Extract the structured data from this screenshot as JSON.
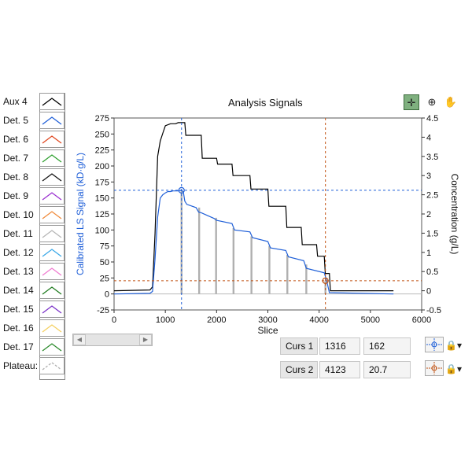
{
  "window": {
    "title": "Analysis Signals"
  },
  "toolbar": {
    "crosshair_icon": "crosshair-icon",
    "zoom_icon": "zoom-icon",
    "pan_icon": "hand-pan-icon"
  },
  "legend": [
    {
      "label": "Aux 4",
      "color": "#000000"
    },
    {
      "label": "Det. 5",
      "color": "#1f5fd8"
    },
    {
      "label": "Det. 6",
      "color": "#e0461e"
    },
    {
      "label": "Det. 7",
      "color": "#2ea02e"
    },
    {
      "label": "Det. 8",
      "color": "#111111"
    },
    {
      "label": "Det. 9",
      "color": "#9a2fd0"
    },
    {
      "label": "Det. 10",
      "color": "#f08a3a"
    },
    {
      "label": "Det. 11",
      "color": "#b5b5b5"
    },
    {
      "label": "Det. 12",
      "color": "#3aa8e8"
    },
    {
      "label": "Det. 13",
      "color": "#f07ad0"
    },
    {
      "label": "Det. 14",
      "color": "#1e7a1e"
    },
    {
      "label": "Det. 15",
      "color": "#7a30c8"
    },
    {
      "label": "Det. 16",
      "color": "#f5d060"
    },
    {
      "label": "Det. 17",
      "color": "#2a8a2a"
    },
    {
      "label": "Plateau:",
      "color": "#b0b0b0"
    }
  ],
  "cursors": [
    {
      "label": "Curs 1",
      "x": "1316",
      "y": "162"
    },
    {
      "label": "Curs 2",
      "x": "4123",
      "y": "20.7"
    }
  ],
  "chart_data": {
    "type": "line",
    "xlabel": "Slice",
    "ylabel": "Calibrated LS Signal (kD·g/L)",
    "ylabel2": "Concentration (g/L)",
    "xlim": [
      0,
      6000
    ],
    "ylim": [
      -25,
      275
    ],
    "ylim2": [
      -0.5,
      4.5
    ],
    "xticks": [
      0,
      1000,
      2000,
      3000,
      4000,
      5000,
      6000
    ],
    "yticks": [
      -25,
      0,
      25,
      50,
      75,
      100,
      125,
      150,
      175,
      200,
      225,
      250,
      275
    ],
    "yticks2": [
      -0.5,
      0,
      0.5,
      1,
      1.5,
      2,
      2.5,
      3,
      3.5,
      4,
      4.5
    ],
    "series": [
      {
        "name": "Aux 4",
        "axis": "right",
        "color": "#000000",
        "x": [
          0,
          700,
          750,
          800,
          850,
          900,
          950,
          1000,
          1100,
          1200,
          1250,
          1300,
          1380,
          1400,
          1700,
          1720,
          2000,
          2020,
          2300,
          2320,
          2650,
          2670,
          3000,
          3020,
          3350,
          3370,
          3650,
          3670,
          3950,
          3970,
          4100,
          4120,
          4200,
          4220,
          5350,
          5450
        ],
        "values": [
          0,
          0.02,
          0.1,
          1.5,
          3.5,
          3.9,
          4.1,
          4.3,
          4.35,
          4.35,
          4.38,
          4.38,
          4.38,
          4.05,
          4.05,
          3.45,
          3.45,
          3.3,
          3.3,
          3.0,
          3.0,
          2.65,
          2.65,
          2.2,
          2.2,
          1.65,
          1.65,
          1.2,
          1.2,
          0.9,
          0.9,
          0.45,
          0.45,
          0.0,
          0.0,
          0.0
        ]
      },
      {
        "name": "Det. 5",
        "axis": "left",
        "color": "#1f5fd8",
        "x": [
          0,
          700,
          750,
          800,
          850,
          900,
          950,
          1000,
          1050,
          1100,
          1150,
          1200,
          1250,
          1300,
          1350,
          1380,
          1420,
          1600,
          1650,
          1700,
          1950,
          2000,
          2300,
          2350,
          2650,
          2700,
          3000,
          3050,
          3350,
          3400,
          3700,
          3750,
          4100,
          4150,
          4200,
          5450
        ],
        "values": [
          0,
          1,
          4,
          55,
          120,
          150,
          155,
          158,
          160,
          160,
          161,
          161,
          161,
          162,
          160,
          145,
          140,
          135,
          128,
          127,
          118,
          115,
          110,
          100,
          97,
          88,
          82,
          72,
          68,
          58,
          52,
          40,
          33,
          20,
          2,
          0
        ]
      },
      {
        "name": "Plateau:",
        "axis": "left",
        "color": "#b0b0b0",
        "type": "bar",
        "x": [
          1316,
          1660,
          1990,
          2330,
          2680,
          3030,
          3380,
          3750,
          4123
        ],
        "values": [
          162,
          135,
          119,
          103,
          90,
          75,
          61,
          46,
          21
        ]
      }
    ],
    "cursors": [
      {
        "name": "Curs 1",
        "x": 1316,
        "y": 162,
        "color": "#1f5fd8"
      },
      {
        "name": "Curs 2",
        "x": 4123,
        "y": 20.7,
        "color": "#c05010"
      }
    ]
  }
}
